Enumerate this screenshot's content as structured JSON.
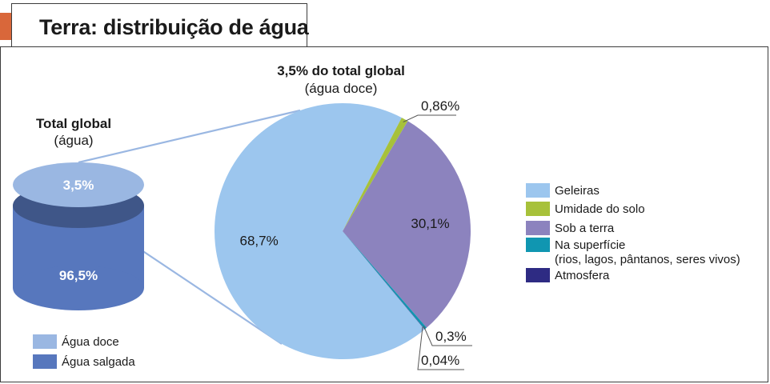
{
  "title": "Terra: distribuição de água",
  "chart_data": [
    {
      "type": "bar",
      "title": "Total global",
      "subtitle": "(água)",
      "categories": [
        "Água doce",
        "Água salgada"
      ],
      "values": [
        3.5,
        96.5
      ],
      "value_labels": [
        "3,5%",
        "96,5%"
      ],
      "colors": [
        "#9ab7e2",
        "#5777bd"
      ],
      "legend": [
        "Água doce",
        "Água salgada"
      ],
      "legend_position": "bottom-left"
    },
    {
      "type": "pie",
      "title": "3,5% do total global",
      "subtitle": "(água doce)",
      "categories": [
        "Geleiras",
        "Umidade do solo",
        "Sob a terra",
        "Na superfície",
        "Atmosfera"
      ],
      "values": [
        68.7,
        0.86,
        30.1,
        0.3,
        0.04
      ],
      "value_labels": [
        "68,7%",
        "0,86%",
        "30,1%",
        "0,3%",
        "0,04%"
      ],
      "colors": [
        "#9cc6ee",
        "#a7c13a",
        "#8c83be",
        "#1096b1",
        "#2e2b83"
      ],
      "legend": [
        "Geleiras",
        "Umidade do solo",
        "Sob a terra",
        "Na superfície",
        "Atmosfera"
      ],
      "legend_sub": [
        "",
        "",
        "",
        "(rios, lagos, pântanos, seres vivos)",
        ""
      ],
      "legend_position": "right"
    }
  ]
}
